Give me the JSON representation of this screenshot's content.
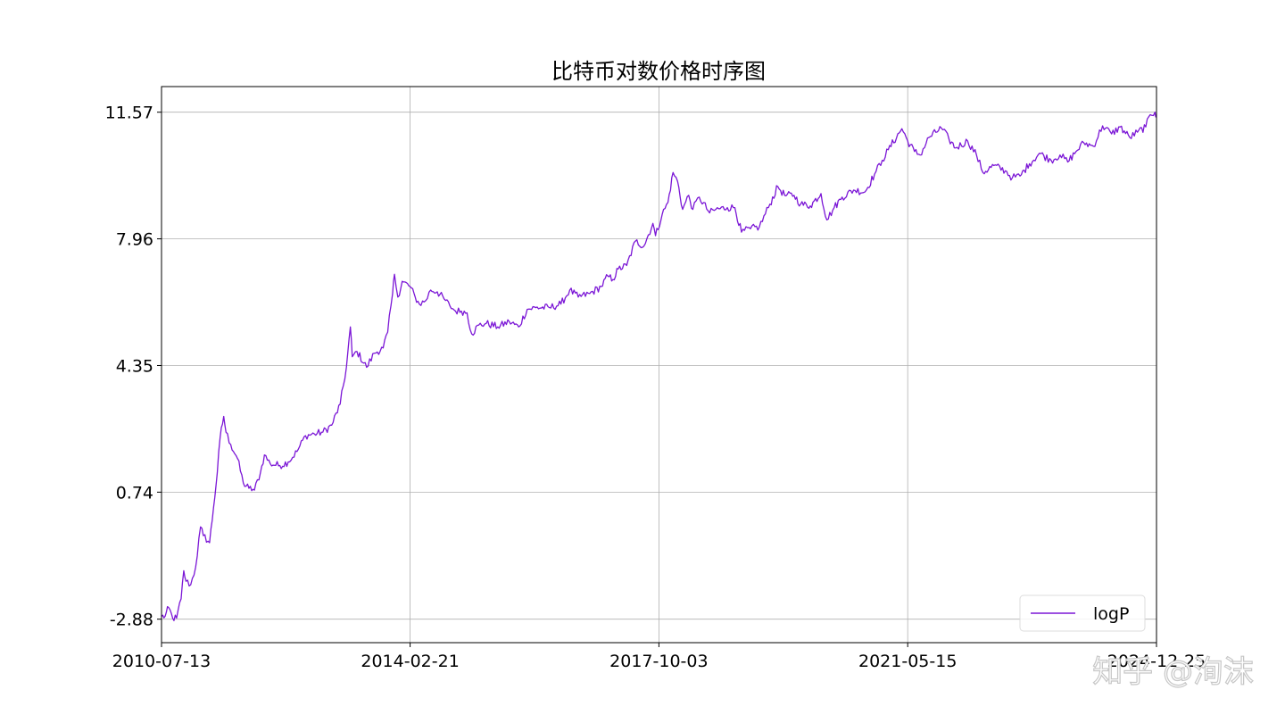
{
  "chart_data": {
    "type": "line",
    "title": "比特币对数价格时序图",
    "xlabel": "",
    "ylabel": "",
    "x_ticks": [
      "2010-07-13",
      "2014-02-21",
      "2017-10-03",
      "2021-05-15",
      "2024-12-25"
    ],
    "y_ticks": [
      "-2.88",
      "0.74",
      "4.35",
      "7.96",
      "11.57"
    ],
    "xlim": [
      "2010-07-13",
      "2024-12-25"
    ],
    "ylim": [
      -3.55,
      12.3
    ],
    "grid": true,
    "legend_position": "lower-right",
    "series": [
      {
        "name": "logP",
        "color": "#7b16d6",
        "points": [
          [
            "2010-07-13",
            -2.8
          ],
          [
            "2010-08-01",
            -2.8
          ],
          [
            "2010-08-20",
            -2.55
          ],
          [
            "2010-09-10",
            -2.85
          ],
          [
            "2010-10-01",
            -2.85
          ],
          [
            "2010-10-25",
            -2.3
          ],
          [
            "2010-11-08",
            -1.5
          ],
          [
            "2010-11-20",
            -1.8
          ],
          [
            "2010-12-15",
            -1.9
          ],
          [
            "2011-01-10",
            -1.4
          ],
          [
            "2011-02-05",
            -0.25
          ],
          [
            "2011-02-20",
            -0.5
          ],
          [
            "2011-03-25",
            -0.7
          ],
          [
            "2011-04-15",
            0.3
          ],
          [
            "2011-05-05",
            1.3
          ],
          [
            "2011-05-20",
            2.3
          ],
          [
            "2011-06-08",
            2.9
          ],
          [
            "2011-06-20",
            2.45
          ],
          [
            "2011-07-15",
            2.1
          ],
          [
            "2011-08-20",
            1.7
          ],
          [
            "2011-09-20",
            1.0
          ],
          [
            "2011-10-20",
            0.85
          ],
          [
            "2011-11-18",
            0.8
          ],
          [
            "2011-12-20",
            1.3
          ],
          [
            "2012-01-10",
            1.8
          ],
          [
            "2012-02-10",
            1.55
          ],
          [
            "2012-04-01",
            1.5
          ],
          [
            "2012-05-15",
            1.6
          ],
          [
            "2012-07-01",
            1.9
          ],
          [
            "2012-08-15",
            2.35
          ],
          [
            "2012-10-01",
            2.4
          ],
          [
            "2012-11-15",
            2.45
          ],
          [
            "2013-01-01",
            2.65
          ],
          [
            "2013-02-15",
            3.25
          ],
          [
            "2013-03-20",
            4.3
          ],
          [
            "2013-04-10",
            5.45
          ],
          [
            "2013-04-20",
            4.6
          ],
          [
            "2013-05-15",
            4.75
          ],
          [
            "2013-07-05",
            4.3
          ],
          [
            "2013-08-15",
            4.7
          ],
          [
            "2013-10-01",
            4.85
          ],
          [
            "2013-10-25",
            5.3
          ],
          [
            "2013-11-20",
            6.4
          ],
          [
            "2013-11-30",
            6.95
          ],
          [
            "2013-12-18",
            6.3
          ],
          [
            "2014-01-10",
            6.75
          ],
          [
            "2014-02-21",
            6.6
          ],
          [
            "2014-03-20",
            6.3
          ],
          [
            "2014-04-11",
            6.1
          ],
          [
            "2014-05-15",
            6.2
          ],
          [
            "2014-06-10",
            6.5
          ],
          [
            "2014-07-15",
            6.45
          ],
          [
            "2014-08-20",
            6.25
          ],
          [
            "2014-09-20",
            6.05
          ],
          [
            "2014-10-20",
            5.9
          ],
          [
            "2014-11-20",
            5.9
          ],
          [
            "2014-12-20",
            5.85
          ],
          [
            "2015-01-14",
            5.25
          ],
          [
            "2015-02-20",
            5.5
          ],
          [
            "2015-04-01",
            5.55
          ],
          [
            "2015-06-01",
            5.45
          ],
          [
            "2015-08-01",
            5.6
          ],
          [
            "2015-09-20",
            5.45
          ],
          [
            "2015-11-04",
            5.95
          ],
          [
            "2015-12-20",
            6.0
          ],
          [
            "2016-03-01",
            6.0
          ],
          [
            "2016-05-01",
            6.1
          ],
          [
            "2016-06-17",
            6.5
          ],
          [
            "2016-08-01",
            6.3
          ],
          [
            "2016-10-01",
            6.4
          ],
          [
            "2016-12-01",
            6.6
          ],
          [
            "2017-01-05",
            6.9
          ],
          [
            "2017-02-01",
            6.8
          ],
          [
            "2017-03-01",
            7.1
          ],
          [
            "2017-04-15",
            7.2
          ],
          [
            "2017-06-01",
            7.9
          ],
          [
            "2017-07-15",
            7.75
          ],
          [
            "2017-09-01",
            8.4
          ],
          [
            "2017-09-15",
            8.05
          ],
          [
            "2017-10-20",
            8.65
          ],
          [
            "2017-11-20",
            9.0
          ],
          [
            "2017-12-17",
            9.85
          ],
          [
            "2018-01-10",
            9.6
          ],
          [
            "2018-02-06",
            8.8
          ],
          [
            "2018-03-10",
            9.2
          ],
          [
            "2018-04-01",
            8.8
          ],
          [
            "2018-05-05",
            9.15
          ],
          [
            "2018-06-29",
            8.7
          ],
          [
            "2018-08-01",
            8.8
          ],
          [
            "2018-10-01",
            8.85
          ],
          [
            "2018-11-10",
            8.85
          ],
          [
            "2018-12-15",
            8.15
          ],
          [
            "2019-02-01",
            8.25
          ],
          [
            "2019-03-20",
            8.3
          ],
          [
            "2019-05-15",
            8.95
          ],
          [
            "2019-06-26",
            9.45
          ],
          [
            "2019-08-01",
            9.2
          ],
          [
            "2019-09-20",
            9.2
          ],
          [
            "2019-10-25",
            8.95
          ],
          [
            "2019-12-15",
            8.9
          ],
          [
            "2020-02-10",
            9.25
          ],
          [
            "2020-03-12",
            8.5
          ],
          [
            "2020-04-20",
            8.85
          ],
          [
            "2020-06-01",
            9.15
          ],
          [
            "2020-08-01",
            9.35
          ],
          [
            "2020-10-01",
            9.3
          ],
          [
            "2020-11-20",
            9.8
          ],
          [
            "2020-12-31",
            10.2
          ],
          [
            "2021-02-01",
            10.5
          ],
          [
            "2021-04-14",
            11.1
          ],
          [
            "2021-05-15",
            10.75
          ],
          [
            "2021-06-20",
            10.45
          ],
          [
            "2021-07-20",
            10.35
          ],
          [
            "2021-09-05",
            10.85
          ],
          [
            "2021-11-09",
            11.12
          ],
          [
            "2021-12-20",
            10.8
          ],
          [
            "2022-01-24",
            10.55
          ],
          [
            "2022-03-29",
            10.75
          ],
          [
            "2022-05-15",
            10.35
          ],
          [
            "2022-06-18",
            9.85
          ],
          [
            "2022-08-15",
            10.05
          ],
          [
            "2022-10-15",
            9.9
          ],
          [
            "2022-11-21",
            9.7
          ],
          [
            "2023-01-01",
            9.75
          ],
          [
            "2023-02-20",
            10.1
          ],
          [
            "2023-04-14",
            10.4
          ],
          [
            "2023-06-15",
            10.2
          ],
          [
            "2023-08-01",
            10.35
          ],
          [
            "2023-09-11",
            10.15
          ],
          [
            "2023-10-25",
            10.45
          ],
          [
            "2023-12-05",
            10.7
          ],
          [
            "2024-01-25",
            10.6
          ],
          [
            "2024-03-14",
            11.18
          ],
          [
            "2024-05-01",
            10.95
          ],
          [
            "2024-06-15",
            11.15
          ],
          [
            "2024-08-05",
            10.85
          ],
          [
            "2024-09-15",
            11.0
          ],
          [
            "2024-10-29",
            11.15
          ],
          [
            "2024-11-22",
            11.5
          ],
          [
            "2024-12-17",
            11.57
          ],
          [
            "2024-12-25",
            11.45
          ]
        ]
      }
    ]
  },
  "watermark": {
    "text": "知乎 @洵沫"
  }
}
